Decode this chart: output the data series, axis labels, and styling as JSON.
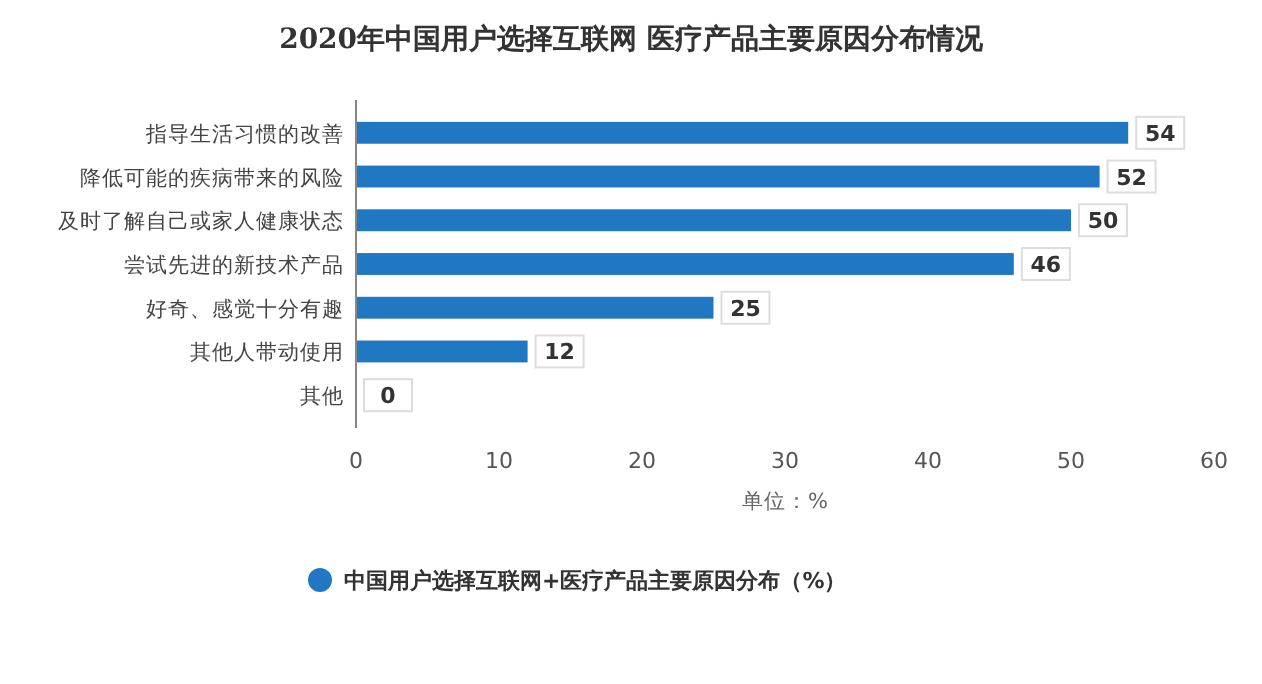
{
  "chart_data": {
    "type": "bar",
    "orientation": "horizontal",
    "title": "2020年中国用户选择互联网 医疗产品主要原因分布情况",
    "categories": [
      "指导生活习惯的改善",
      "降低可能的疾病带来的风险",
      "及时了解自己或家人健康状态",
      "尝试先进的新技术产品",
      "好奇、感觉十分有趣",
      "其他人带动使用",
      "其他"
    ],
    "series": [
      {
        "name": "中国用户选择互联网+医疗产品主要原因分布（%）",
        "color": "#1f78c1",
        "values": [
          54,
          52,
          50,
          46,
          25,
          12,
          0
        ]
      }
    ],
    "xlim": [
      0,
      60
    ],
    "xticks": [
      0,
      10,
      20,
      30,
      40,
      50,
      60
    ],
    "xlabel": "单位：%",
    "data_labels": true,
    "legend": "bottom",
    "grid": false
  }
}
